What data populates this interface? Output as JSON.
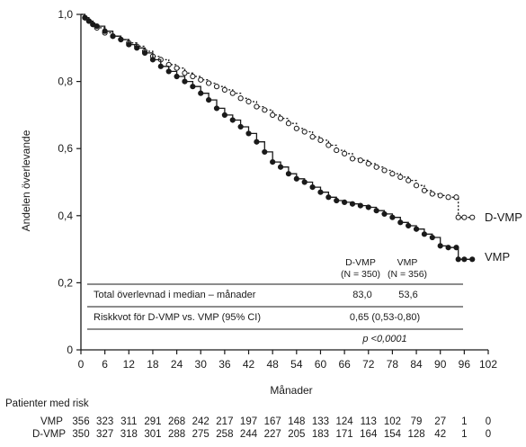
{
  "chart_data": {
    "type": "line",
    "subtype": "kaplan-meier",
    "xlabel": "Månader",
    "ylabel": "Andelen överlevande",
    "xlim": [
      0,
      102
    ],
    "ylim": [
      0,
      1.0
    ],
    "x_ticks": [
      0,
      6,
      12,
      18,
      24,
      30,
      36,
      42,
      48,
      54,
      60,
      66,
      72,
      78,
      84,
      90,
      96,
      102
    ],
    "y_ticks": [
      {
        "value": 0,
        "label": "0"
      },
      {
        "value": 0.2,
        "label": "0,2"
      },
      {
        "value": 0.4,
        "label": "0,4"
      },
      {
        "value": 0.6,
        "label": "0,6"
      },
      {
        "value": 0.8,
        "label": "0,8"
      },
      {
        "value": 1.0,
        "label": "1,0"
      }
    ],
    "grid": false,
    "series": [
      {
        "name": "D-VMP",
        "line_style": "dotted",
        "marker": "open-circle",
        "color": "#1a1a1a",
        "points": [
          [
            0,
            1.0
          ],
          [
            1,
            0.99
          ],
          [
            2,
            0.98
          ],
          [
            3,
            0.97
          ],
          [
            4,
            0.96
          ],
          [
            6,
            0.945
          ],
          [
            8,
            0.935
          ],
          [
            10,
            0.925
          ],
          [
            12,
            0.915
          ],
          [
            14,
            0.905
          ],
          [
            16,
            0.89
          ],
          [
            18,
            0.875
          ],
          [
            20,
            0.865
          ],
          [
            22,
            0.85
          ],
          [
            24,
            0.84
          ],
          [
            26,
            0.825
          ],
          [
            28,
            0.815
          ],
          [
            30,
            0.805
          ],
          [
            32,
            0.795
          ],
          [
            34,
            0.785
          ],
          [
            36,
            0.775
          ],
          [
            38,
            0.765
          ],
          [
            40,
            0.75
          ],
          [
            42,
            0.74
          ],
          [
            44,
            0.725
          ],
          [
            46,
            0.715
          ],
          [
            48,
            0.7
          ],
          [
            50,
            0.69
          ],
          [
            52,
            0.675
          ],
          [
            54,
            0.66
          ],
          [
            56,
            0.65
          ],
          [
            58,
            0.635
          ],
          [
            60,
            0.625
          ],
          [
            62,
            0.61
          ],
          [
            64,
            0.595
          ],
          [
            66,
            0.585
          ],
          [
            68,
            0.57
          ],
          [
            70,
            0.565
          ],
          [
            72,
            0.555
          ],
          [
            74,
            0.545
          ],
          [
            76,
            0.535
          ],
          [
            78,
            0.525
          ],
          [
            80,
            0.515
          ],
          [
            82,
            0.505
          ],
          [
            84,
            0.49
          ],
          [
            86,
            0.475
          ],
          [
            88,
            0.465
          ],
          [
            90,
            0.46
          ],
          [
            92,
            0.455
          ],
          [
            94,
            0.455
          ],
          [
            94.5,
            0.395
          ],
          [
            96,
            0.395
          ],
          [
            98,
            0.395
          ]
        ]
      },
      {
        "name": "VMP",
        "line_style": "solid",
        "marker": "filled-circle",
        "color": "#1a1a1a",
        "points": [
          [
            0,
            1.0
          ],
          [
            1,
            0.99
          ],
          [
            2,
            0.98
          ],
          [
            3,
            0.97
          ],
          [
            4,
            0.965
          ],
          [
            6,
            0.95
          ],
          [
            8,
            0.935
          ],
          [
            10,
            0.925
          ],
          [
            12,
            0.91
          ],
          [
            14,
            0.9
          ],
          [
            16,
            0.885
          ],
          [
            18,
            0.865
          ],
          [
            20,
            0.845
          ],
          [
            22,
            0.83
          ],
          [
            24,
            0.815
          ],
          [
            26,
            0.8
          ],
          [
            28,
            0.785
          ],
          [
            30,
            0.765
          ],
          [
            32,
            0.745
          ],
          [
            34,
            0.72
          ],
          [
            36,
            0.7
          ],
          [
            38,
            0.685
          ],
          [
            40,
            0.665
          ],
          [
            42,
            0.645
          ],
          [
            44,
            0.62
          ],
          [
            46,
            0.59
          ],
          [
            48,
            0.56
          ],
          [
            50,
            0.545
          ],
          [
            52,
            0.525
          ],
          [
            54,
            0.51
          ],
          [
            56,
            0.5
          ],
          [
            58,
            0.485
          ],
          [
            60,
            0.47
          ],
          [
            62,
            0.455
          ],
          [
            64,
            0.445
          ],
          [
            66,
            0.44
          ],
          [
            68,
            0.435
          ],
          [
            70,
            0.43
          ],
          [
            72,
            0.425
          ],
          [
            74,
            0.415
          ],
          [
            76,
            0.405
          ],
          [
            78,
            0.395
          ],
          [
            80,
            0.38
          ],
          [
            82,
            0.37
          ],
          [
            84,
            0.36
          ],
          [
            86,
            0.345
          ],
          [
            88,
            0.335
          ],
          [
            90,
            0.31
          ],
          [
            92,
            0.305
          ],
          [
            94,
            0.305
          ],
          [
            94.5,
            0.27
          ],
          [
            96,
            0.27
          ],
          [
            98,
            0.27
          ]
        ]
      }
    ],
    "stats_table": {
      "col_headers": [
        {
          "name": "D-VMP",
          "n": "(N = 350)"
        },
        {
          "name": "VMP",
          "n": "(N = 356)"
        }
      ],
      "rows": [
        {
          "label": "Total överlevnad i median – månader",
          "values": [
            "83,0",
            "53,6"
          ]
        },
        {
          "label": "Riskkvot för D-VMP vs. VMP (95% CI)",
          "value": "0,65 (0,53-0,80)"
        }
      ],
      "p_value": "p <0,0001"
    },
    "at_risk": {
      "title": "Patienter med risk",
      "rows": [
        {
          "label": "VMP",
          "values": [
            "356",
            "323",
            "311",
            "291",
            "268",
            "242",
            "217",
            "197",
            "167",
            "148",
            "133",
            "124",
            "113",
            "102",
            "79",
            "27",
            "1",
            "0"
          ]
        },
        {
          "label": "D-VMP",
          "values": [
            "350",
            "327",
            "318",
            "301",
            "288",
            "275",
            "258",
            "244",
            "227",
            "205",
            "183",
            "171",
            "164",
            "154",
            "128",
            "42",
            "1",
            "0"
          ]
        }
      ]
    }
  }
}
